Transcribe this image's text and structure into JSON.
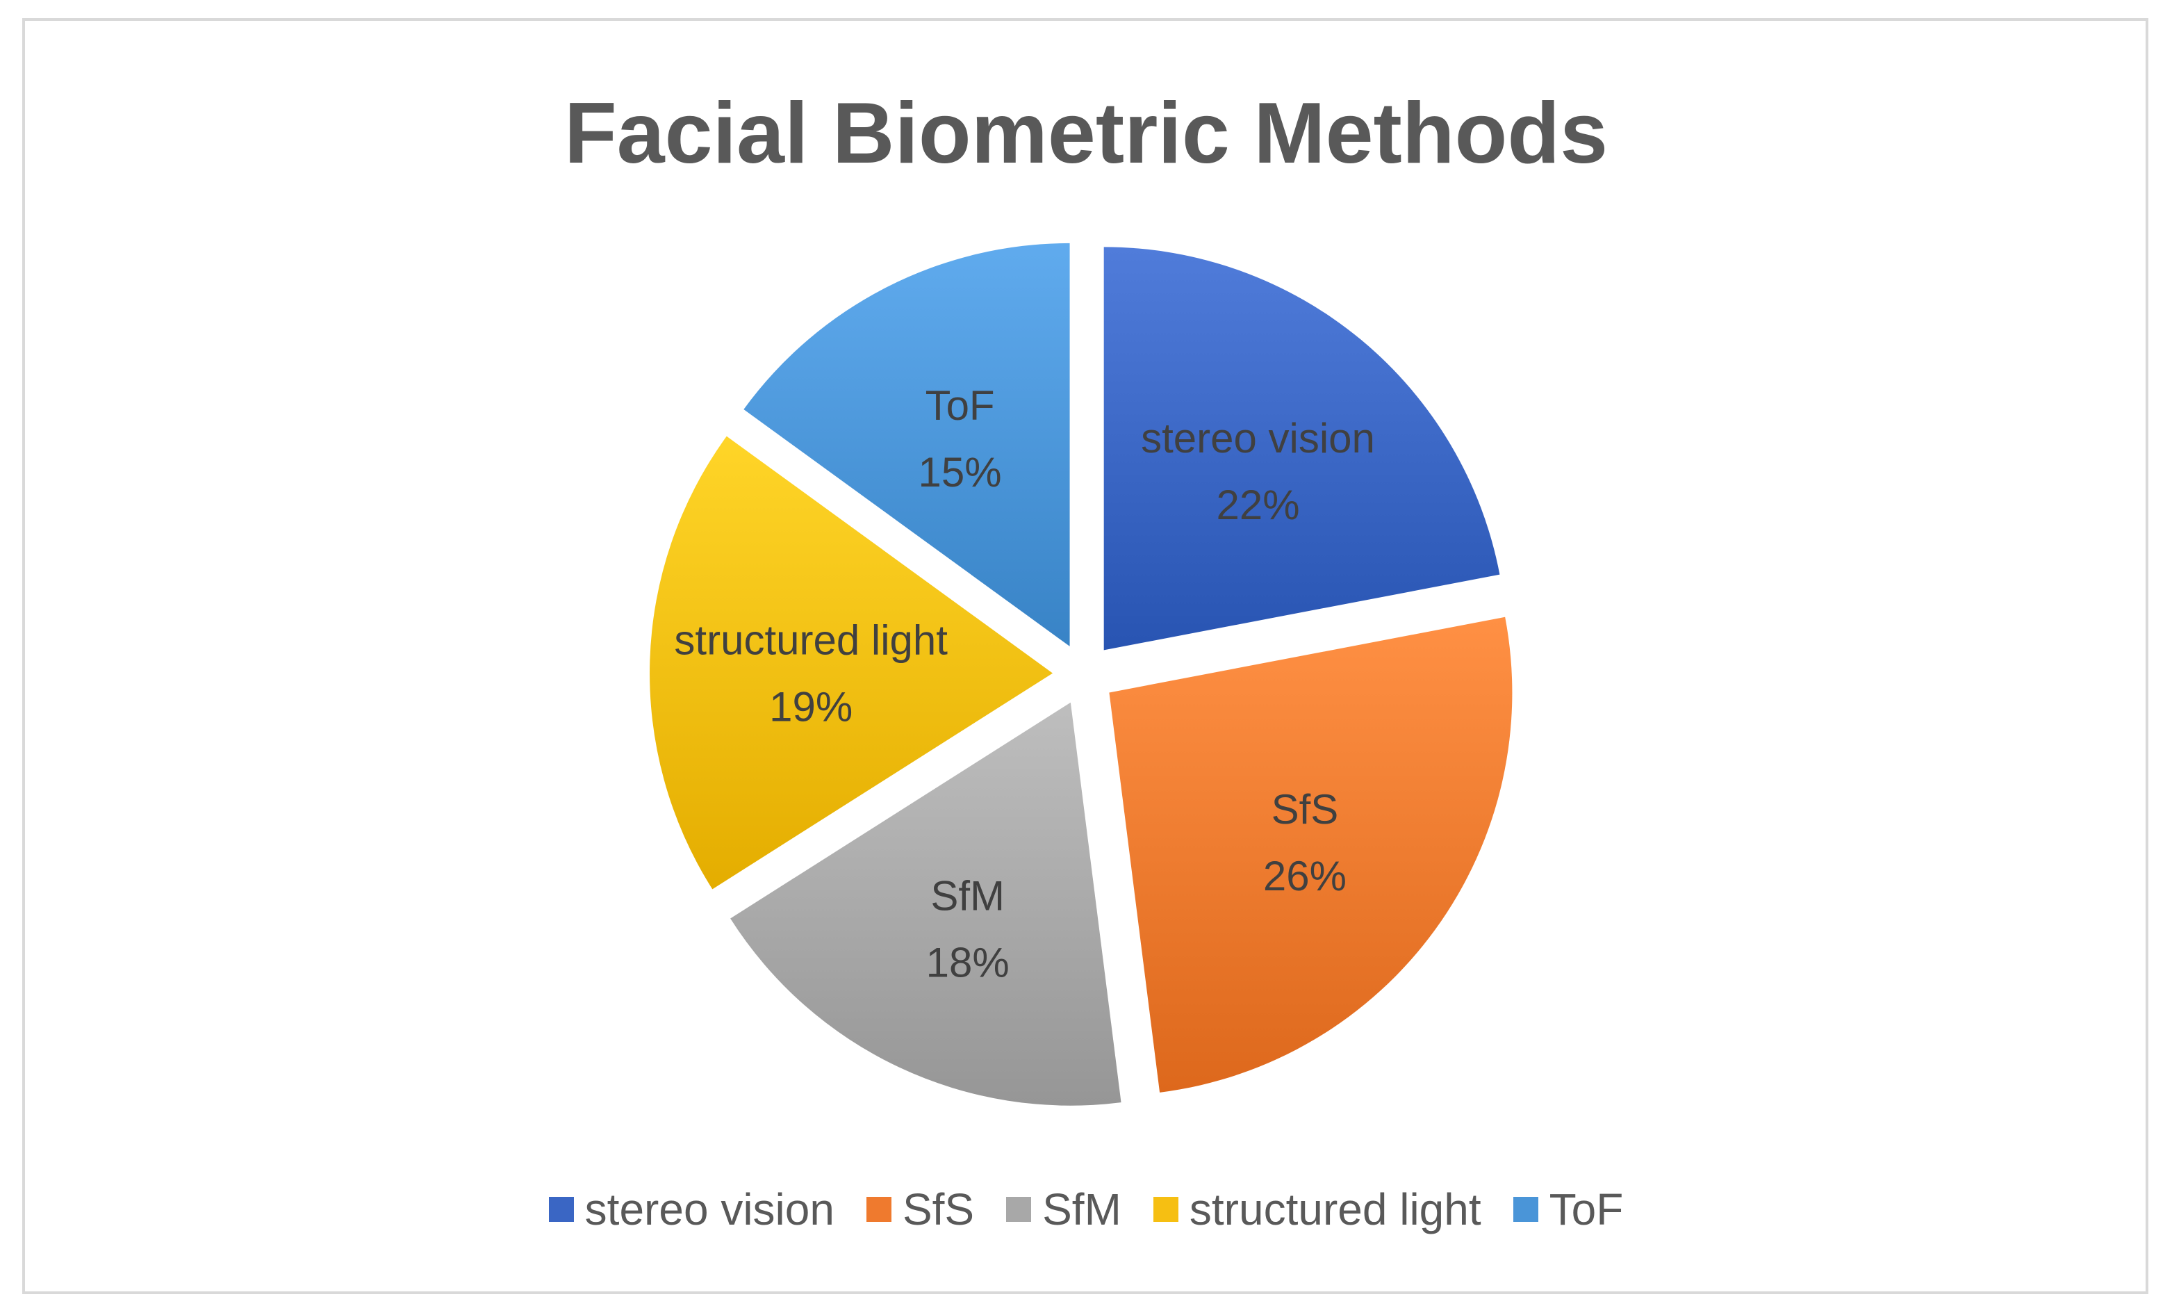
{
  "chart_data": {
    "type": "pie",
    "title": "Facial Biometric Methods",
    "categories": [
      "stereo vision",
      "SfS",
      "SfM",
      "structured light",
      "ToF"
    ],
    "values": [
      22,
      26,
      18,
      19,
      15
    ],
    "value_labels": [
      "22%",
      "26%",
      "18%",
      "19%",
      "15%"
    ],
    "colors": [
      "#3a66c4",
      "#ef7a2e",
      "#a8a8a8",
      "#f6bf12",
      "#4a95d8"
    ],
    "exploded": true,
    "legend_position": "bottom"
  }
}
